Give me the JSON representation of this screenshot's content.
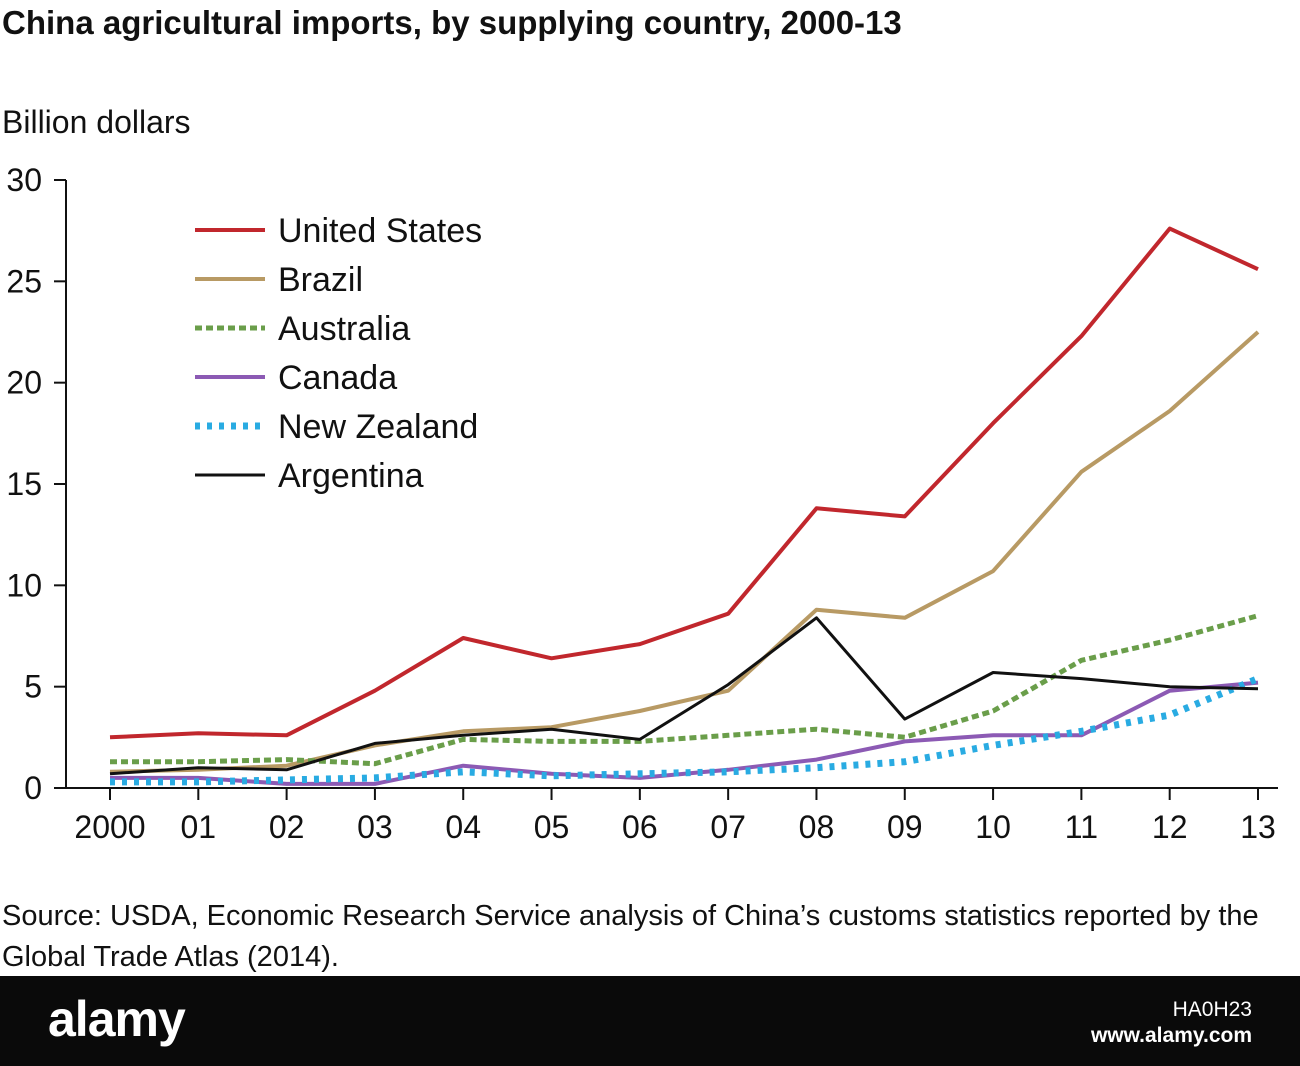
{
  "header": {
    "title": "China agricultural imports, by supplying country, 2000-13",
    "unit_label": "Billion dollars"
  },
  "source": {
    "text": "Source: USDA, Economic Research Service analysis of China’s customs statistics reported by the Global Trade Atlas (2014)."
  },
  "footer": {
    "brand": "alamy",
    "image_id": "HA0H23",
    "site": "www.alamy.com"
  },
  "chart_data": {
    "type": "line",
    "title": "China agricultural imports, by supplying country, 2000-13",
    "ylabel": "Billion dollars",
    "xlabel": "",
    "categories": [
      "2000",
      "01",
      "02",
      "03",
      "04",
      "05",
      "06",
      "07",
      "08",
      "09",
      "10",
      "11",
      "12",
      "13"
    ],
    "ylim": [
      0,
      30
    ],
    "yticks": [
      0,
      5,
      10,
      15,
      20,
      25,
      30
    ],
    "grid": false,
    "legend": "top-left",
    "series": [
      {
        "name": "United States",
        "color": "#c1272d",
        "style": "solid",
        "values": [
          2.5,
          2.7,
          2.6,
          4.8,
          7.4,
          6.4,
          7.1,
          8.6,
          13.8,
          13.4,
          18.0,
          22.3,
          27.6,
          25.6
        ]
      },
      {
        "name": "Brazil",
        "color": "#b89a64",
        "style": "solid",
        "values": [
          0.8,
          0.9,
          1.1,
          2.1,
          2.8,
          3.0,
          3.8,
          4.8,
          8.8,
          8.4,
          10.7,
          15.6,
          18.6,
          22.5
        ]
      },
      {
        "name": "Australia",
        "color": "#6a9e4a",
        "style": "dashed",
        "values": [
          1.3,
          1.3,
          1.4,
          1.2,
          2.4,
          2.3,
          2.3,
          2.6,
          2.9,
          2.5,
          3.8,
          6.3,
          7.3,
          8.5
        ]
      },
      {
        "name": "Canada",
        "color": "#8c5ab4",
        "style": "solid",
        "values": [
          0.5,
          0.5,
          0.2,
          0.2,
          1.1,
          0.7,
          0.5,
          0.9,
          1.4,
          2.3,
          2.6,
          2.6,
          4.8,
          5.2
        ]
      },
      {
        "name": "New Zealand",
        "color": "#29abe2",
        "style": "dotted",
        "values": [
          0.3,
          0.3,
          0.4,
          0.5,
          0.8,
          0.6,
          0.7,
          0.8,
          1.0,
          1.3,
          2.1,
          2.8,
          3.6,
          5.4
        ]
      },
      {
        "name": "Argentina",
        "color": "#111111",
        "style": "solid",
        "values": [
          0.7,
          1.0,
          0.9,
          2.2,
          2.6,
          2.9,
          2.4,
          5.1,
          8.4,
          3.4,
          5.7,
          5.4,
          5.0,
          4.9
        ]
      }
    ]
  }
}
